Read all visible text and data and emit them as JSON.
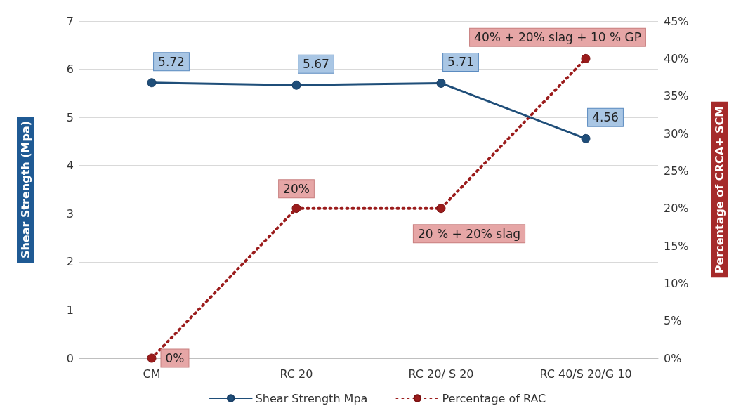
{
  "chart_data": {
    "type": "line",
    "categories": [
      "CM",
      "RC 20",
      "RC 20/ S 20",
      "RC 40/S 20/G 10"
    ],
    "series": [
      {
        "name": "Shear Strength Mpa",
        "color": "#1f4e79",
        "values": [
          5.72,
          5.67,
          5.71,
          4.56
        ],
        "value_labels": [
          "5.72",
          "5.67",
          "5.71",
          "4.56"
        ],
        "line_style": "solid",
        "marker": "circle"
      },
      {
        "name": "Percentage of RAC",
        "color": "#9b1c1c",
        "axis": "y2",
        "values": [
          0,
          20,
          20,
          40
        ],
        "value_labels": [
          "0%",
          "20%",
          "20 % + 20% slag",
          "40% + 20% slag + 10 % GP"
        ],
        "line_style": "dotted",
        "marker": "circle"
      }
    ],
    "ylabel": "Shear Strength (Mpa)",
    "y2label": "Percentage of CRCA+ SCM",
    "ylim": [
      0,
      7
    ],
    "yticks": [
      0,
      1,
      2,
      3,
      4,
      5,
      6,
      7
    ],
    "y2lim": [
      0,
      45
    ],
    "y2ticks": [
      {
        "value": 0,
        "label": "0%"
      },
      {
        "value": 5,
        "label": "5%"
      },
      {
        "value": 10,
        "label": "10%"
      },
      {
        "value": 15,
        "label": "15%"
      },
      {
        "value": 20,
        "label": "20%"
      },
      {
        "value": 25,
        "label": "25%"
      },
      {
        "value": 30,
        "label": "30%"
      },
      {
        "value": 35,
        "label": "35%"
      },
      {
        "value": 40,
        "label": "40%"
      },
      {
        "value": 45,
        "label": "45%"
      }
    ],
    "grid": "y",
    "legend": "bottom"
  }
}
